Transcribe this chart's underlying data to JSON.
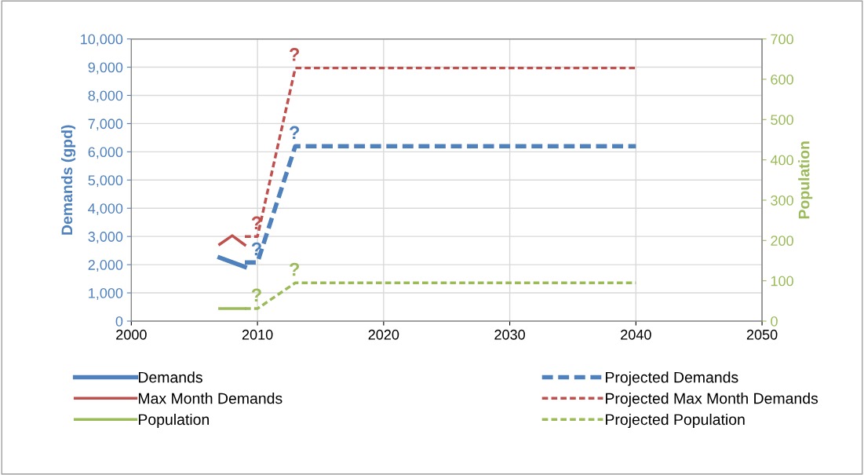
{
  "chart_data": {
    "type": "line",
    "ylabel": "Demands (gpd)",
    "y2label": "Population",
    "xlim": [
      2000,
      2050
    ],
    "xticks": [
      2000,
      2010,
      2020,
      2030,
      2040,
      2050
    ],
    "ylim": [
      0,
      10000
    ],
    "yticks": [
      {
        "value": 0,
        "label": "0"
      },
      {
        "value": 1000,
        "label": "1,000"
      },
      {
        "value": 2000,
        "label": "2,000"
      },
      {
        "value": 3000,
        "label": "3,000"
      },
      {
        "value": 4000,
        "label": "4,000"
      },
      {
        "value": 5000,
        "label": "5,000"
      },
      {
        "value": 6000,
        "label": "6,000"
      },
      {
        "value": 7000,
        "label": "7,000"
      },
      {
        "value": 8000,
        "label": "8,000"
      },
      {
        "value": 9000,
        "label": "9,000"
      },
      {
        "value": 10000,
        "label": "10,000"
      }
    ],
    "y2lim": [
      0,
      700
    ],
    "y2ticks": [
      0,
      100,
      200,
      300,
      400,
      500,
      600,
      700
    ],
    "grid": true,
    "legend": "bottom",
    "marker": "none",
    "series": [
      {
        "name": "Demands",
        "color": "#4f81bd",
        "line_style": "solid",
        "x": [
          2007,
          2009
        ],
        "values": [
          2250,
          1920
        ]
      },
      {
        "name": "Max Month Demands",
        "color": "#c0504d",
        "line_style": "solid",
        "x": [
          2007,
          2008,
          2009
        ],
        "values": [
          2720,
          3030,
          2700
        ]
      },
      {
        "name": "Population",
        "color": "#9bbb59",
        "line_style": "solid",
        "axis": "y2",
        "x": [
          2007,
          2009
        ],
        "values": [
          31,
          31
        ]
      },
      {
        "name": "Projected Demands",
        "color": "#4f81bd",
        "line_style": "dashed",
        "x": [
          2009,
          2010,
          2013,
          2040
        ],
        "values": [
          2080,
          2080,
          6200,
          6200
        ],
        "value_labels": [
          null,
          "?",
          "?",
          null
        ]
      },
      {
        "name": "Projected Max Month Demands",
        "color": "#c0504d",
        "line_style": "dashed",
        "x": [
          2009,
          2010,
          2013,
          2040
        ],
        "values": [
          3000,
          3000,
          8970,
          8970
        ],
        "value_labels": [
          null,
          "?",
          "?",
          null
        ]
      },
      {
        "name": "Projected Population",
        "color": "#9bbb59",
        "line_style": "dashed",
        "axis": "y2",
        "x": [
          2009,
          2010,
          2013,
          2040
        ],
        "values": [
          31,
          31,
          95,
          95
        ],
        "value_labels": [
          null,
          "?",
          "?",
          null
        ]
      }
    ]
  }
}
